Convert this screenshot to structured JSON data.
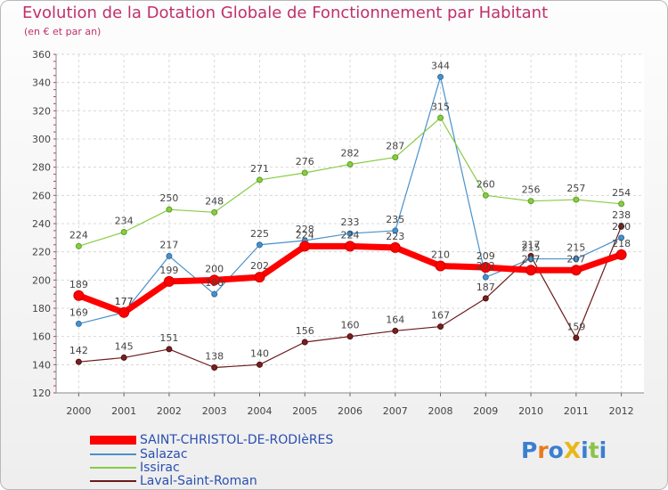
{
  "title": "Evolution de la Dotation Globale de Fonctionnement par Habitant",
  "subtitle": "(en € et par an)",
  "logo_text": "ProXiti",
  "chart_data": {
    "type": "line",
    "x": [
      "2000",
      "2001",
      "2002",
      "2003",
      "2004",
      "2005",
      "2006",
      "2007",
      "2008",
      "2009",
      "2010",
      "2011",
      "2012"
    ],
    "ylim": [
      120,
      360
    ],
    "yticks": [
      120,
      140,
      160,
      180,
      200,
      220,
      240,
      260,
      280,
      300,
      320,
      340,
      360
    ],
    "grid": true,
    "legend_position": "bottom-left",
    "series": [
      {
        "name": "SAINT-CHRISTOL-DE-RODIèRES",
        "color": "#ff0000",
        "values": [
          189,
          177,
          199,
          200,
          202,
          224,
          224,
          223,
          210,
          209,
          207,
          207,
          218
        ]
      },
      {
        "name": "Salazac",
        "color": "#4a90c8",
        "values": [
          169,
          177,
          217,
          190,
          225,
          228,
          233,
          235,
          344,
          202,
          215,
          215,
          230
        ]
      },
      {
        "name": "Issirac",
        "color": "#88cc44",
        "values": [
          224,
          234,
          250,
          248,
          271,
          276,
          282,
          287,
          315,
          260,
          256,
          257,
          254
        ]
      },
      {
        "name": "Laval-Saint-Roman",
        "color": "#6b1a1a",
        "values": [
          142,
          145,
          151,
          138,
          140,
          156,
          160,
          164,
          167,
          187,
          217,
          159,
          238
        ]
      }
    ],
    "data_labels": [
      {
        "series": 0,
        "labels": [
          "189",
          "177",
          "199",
          "200",
          "202",
          "224",
          "224",
          "223",
          "210",
          "209",
          "207",
          "207",
          "218"
        ]
      },
      {
        "series": 1,
        "labels": [
          "169",
          "177",
          "217",
          "190",
          "225",
          "228",
          "233",
          "235",
          "344",
          "202",
          "215",
          "215",
          "230"
        ]
      },
      {
        "series": 2,
        "labels": [
          "224",
          "234",
          "250",
          "248",
          "271",
          "276",
          "282",
          "287",
          "315",
          "260",
          "256",
          "257",
          "254"
        ]
      },
      {
        "series": 3,
        "labels": [
          "142",
          "145",
          "151",
          "138",
          "140",
          "156",
          "160",
          "164",
          "167",
          "187",
          "217",
          "159",
          "238"
        ]
      }
    ]
  }
}
